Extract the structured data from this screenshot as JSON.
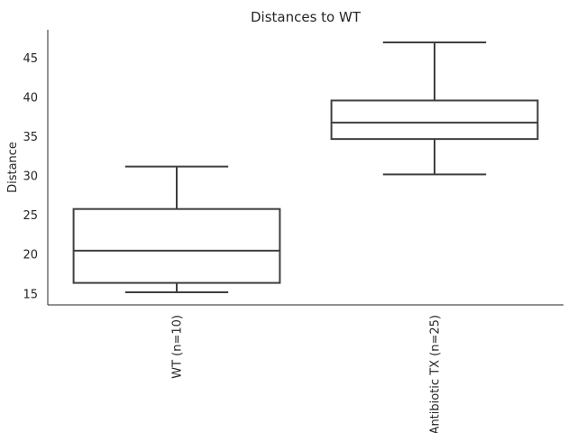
{
  "chart_data": {
    "type": "box",
    "title": "Distances to WT",
    "xlabel": "",
    "ylabel": "Distance",
    "ylim": [
      13.6,
      48.6
    ],
    "yticks": [
      15,
      20,
      25,
      30,
      35,
      40,
      45
    ],
    "grid": false,
    "legend": "none",
    "categories": [
      "WT (n=10)",
      "Antibiotic TX (n=25)"
    ],
    "boxes": [
      {
        "category": "WT (n=10)",
        "whisker_low": 15.2,
        "q1": 16.4,
        "median": 20.5,
        "q3": 25.8,
        "whisker_high": 31.2
      },
      {
        "category": "Antibiotic TX (n=25)",
        "whisker_low": 30.2,
        "q1": 34.7,
        "median": 36.8,
        "q3": 39.6,
        "whisker_high": 47.0
      }
    ],
    "colors": {
      "box_line": "#3f3f3f",
      "axis": "#262626",
      "text": "#262626"
    }
  }
}
